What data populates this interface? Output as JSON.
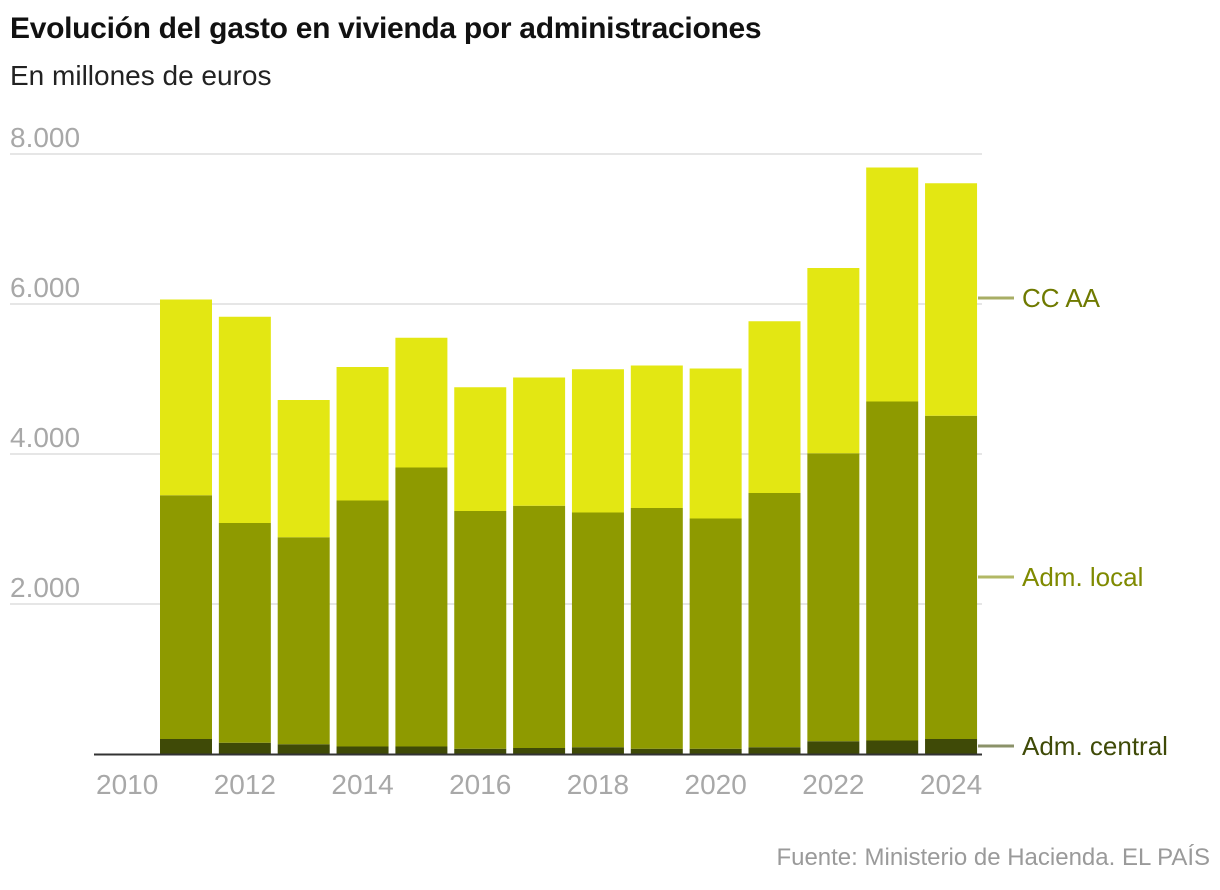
{
  "title": "Evolución del gasto en vivienda por administraciones",
  "subtitle": "En millones de euros",
  "source": "Fuente: Ministerio de Hacienda. EL PAÍS",
  "colors": {
    "central": "#3f4a07",
    "local": "#8e9a00",
    "ccaa": "#e3e713",
    "legend_central": "#3f4a07",
    "legend_local": "#7f8a00",
    "legend_ccaa": "#6f7a00",
    "grid": "#dddddd",
    "axis": "#333333"
  },
  "chart_data": {
    "type": "bar",
    "stacked": true,
    "title": "Evolución del gasto en vivienda por administraciones",
    "subtitle": "En millones de euros",
    "categories": [
      2011,
      2012,
      2013,
      2014,
      2015,
      2016,
      2017,
      2018,
      2019,
      2020,
      2021,
      2022,
      2023,
      2024
    ],
    "x_ticks": [
      "2010",
      "2012",
      "2014",
      "2016",
      "2018",
      "2020",
      "2022",
      "2024"
    ],
    "y_ticks": [
      "2.000",
      "4.000",
      "6.000",
      "8.000"
    ],
    "y_tick_values": [
      2000,
      4000,
      6000,
      8000
    ],
    "ylim": [
      0,
      8000
    ],
    "grid": true,
    "legend_placement": "right, inline labels",
    "series": [
      {
        "name": "Adm. central",
        "values": [
          200,
          150,
          130,
          100,
          100,
          70,
          80,
          90,
          70,
          70,
          90,
          170,
          180,
          200
        ]
      },
      {
        "name": "Adm. local",
        "values": [
          3250,
          2930,
          2760,
          3280,
          3720,
          3170,
          3230,
          3130,
          3210,
          3070,
          3390,
          3840,
          4520,
          4310
        ]
      },
      {
        "name": "CC AA",
        "values": [
          2610,
          2750,
          1830,
          1780,
          1730,
          1650,
          1710,
          1910,
          1900,
          2000,
          2290,
          2470,
          3120,
          3100
        ]
      }
    ]
  }
}
